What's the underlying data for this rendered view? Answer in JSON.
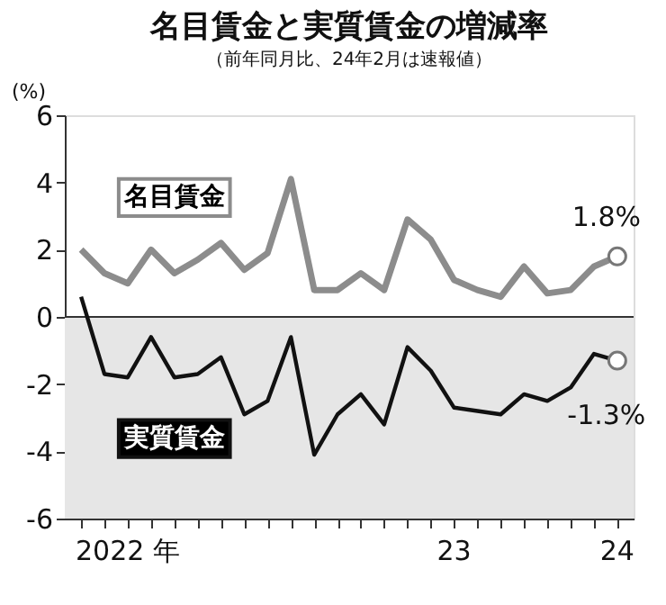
{
  "chart_data": {
    "type": "line",
    "title": "名目賃金と実質賃金の増減率",
    "subtitle": "（前年同月比、24年2月は速報値）",
    "ylabel": "(%)",
    "categories": [
      null,
      null,
      null,
      null,
      null,
      null,
      null,
      null,
      null,
      null,
      null,
      null,
      null,
      null,
      null,
      null,
      null,
      null,
      null,
      null,
      null,
      null,
      null,
      null
    ],
    "series": [
      {
        "name": "名目賃金",
        "color": "#8c8c8c",
        "values": [
          2.0,
          1.3,
          1.0,
          2.0,
          1.3,
          1.7,
          2.2,
          1.4,
          1.9,
          4.1,
          0.8,
          0.8,
          1.3,
          0.8,
          2.9,
          2.3,
          1.1,
          0.8,
          0.6,
          1.5,
          0.7,
          0.8,
          1.5,
          1.8
        ]
      },
      {
        "name": "実質賃金",
        "color": "#111111",
        "values": [
          0.6,
          -1.7,
          -1.8,
          -0.6,
          -1.8,
          -1.7,
          -1.2,
          -2.9,
          -2.5,
          -0.6,
          -4.1,
          -2.9,
          -2.3,
          -3.2,
          -0.9,
          -1.6,
          -2.7,
          -2.8,
          -2.9,
          -2.3,
          -2.5,
          -2.1,
          -1.1,
          -1.3
        ]
      }
    ],
    "ylim": [
      -6,
      6
    ],
    "yticks": [
      -6,
      -4,
      -2,
      0,
      2,
      4,
      6
    ],
    "bands": [
      {
        "axis": "y",
        "from": -6,
        "to": 0,
        "color": "#e6e6e6"
      }
    ],
    "ref_lines": [
      {
        "axis": "y",
        "value": 0,
        "color": "#333333"
      }
    ],
    "annotations": [
      {
        "text": "1.8%",
        "y": 1.8
      },
      {
        "text": "-1.3%",
        "y": -1.3
      },
      "2022 年",
      "23",
      "24"
    ],
    "grid": false,
    "line_style": "solid"
  }
}
